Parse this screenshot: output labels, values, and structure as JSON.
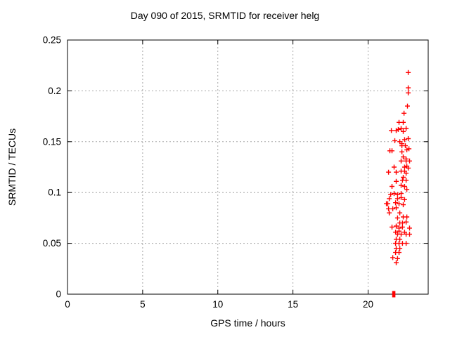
{
  "chart_data": {
    "type": "scatter",
    "title": "Day 090 of 2015, SRMTID for receiver helg",
    "xlabel": "GPS time / hours",
    "ylabel": "SRMTID / TECUs",
    "xlim": [
      0,
      24
    ],
    "ylim": [
      0,
      0.25
    ],
    "grid": true,
    "legend": "none",
    "xticks": {
      "values": [
        0,
        5,
        10,
        15,
        20
      ],
      "labels": [
        "0",
        "5",
        "10",
        "15",
        "20"
      ]
    },
    "yticks": {
      "values": [
        0,
        0.05,
        0.1,
        0.15,
        0.2,
        0.25
      ],
      "labels": [
        "0",
        "0.05",
        "0.1",
        "0.15",
        "0.2",
        "0.25"
      ]
    },
    "marker": "plus",
    "colors": {
      "marker": "#ff0000",
      "grid": "#a8a8a8",
      "frame": "#000000",
      "text": "#000000",
      "background": "#ffffff"
    },
    "series": [
      {
        "name": "SRMTID",
        "points": [
          [
            22.67,
            0.218
          ],
          [
            22.67,
            0.203
          ],
          [
            22.67,
            0.198
          ],
          [
            22.62,
            0.185
          ],
          [
            22.39,
            0.178
          ],
          [
            22.06,
            0.169
          ],
          [
            22.34,
            0.169
          ],
          [
            21.87,
            0.161
          ],
          [
            22.34,
            0.16
          ],
          [
            21.55,
            0.161
          ],
          [
            22.01,
            0.162
          ],
          [
            22.2,
            0.163
          ],
          [
            22.53,
            0.163
          ],
          [
            22.67,
            0.153
          ],
          [
            22.43,
            0.152
          ],
          [
            21.78,
            0.151
          ],
          [
            22.11,
            0.15
          ],
          [
            22.25,
            0.148
          ],
          [
            22.25,
            0.146
          ],
          [
            22.48,
            0.146
          ],
          [
            21.45,
            0.141
          ],
          [
            21.59,
            0.141
          ],
          [
            22.25,
            0.14
          ],
          [
            22.58,
            0.142
          ],
          [
            22.72,
            0.143
          ],
          [
            22.34,
            0.135
          ],
          [
            22.53,
            0.133
          ],
          [
            22.2,
            0.131
          ],
          [
            22.53,
            0.131
          ],
          [
            22.76,
            0.131
          ],
          [
            21.73,
            0.125
          ],
          [
            22.43,
            0.125
          ],
          [
            22.58,
            0.126
          ],
          [
            22.67,
            0.124
          ],
          [
            21.36,
            0.12
          ],
          [
            21.87,
            0.12
          ],
          [
            22.2,
            0.121
          ],
          [
            22.43,
            0.121
          ],
          [
            22.53,
            0.119
          ],
          [
            22.34,
            0.115
          ],
          [
            21.87,
            0.111
          ],
          [
            22.29,
            0.112
          ],
          [
            22.53,
            0.112
          ],
          [
            21.59,
            0.106
          ],
          [
            22.2,
            0.107
          ],
          [
            22.43,
            0.106
          ],
          [
            22.58,
            0.103
          ],
          [
            21.5,
            0.098
          ],
          [
            21.73,
            0.099
          ],
          [
            21.96,
            0.098
          ],
          [
            22.2,
            0.099
          ],
          [
            21.41,
            0.094
          ],
          [
            21.96,
            0.094
          ],
          [
            22.2,
            0.095
          ],
          [
            22.43,
            0.093
          ],
          [
            21.22,
            0.089
          ],
          [
            21.31,
            0.089
          ],
          [
            21.83,
            0.09
          ],
          [
            22.06,
            0.089
          ],
          [
            22.34,
            0.088
          ],
          [
            21.36,
            0.084
          ],
          [
            21.64,
            0.084
          ],
          [
            21.87,
            0.085
          ],
          [
            21.41,
            0.08
          ],
          [
            22.11,
            0.08
          ],
          [
            21.96,
            0.075
          ],
          [
            22.34,
            0.076
          ],
          [
            22.58,
            0.076
          ],
          [
            22.11,
            0.07
          ],
          [
            22.29,
            0.07
          ],
          [
            22.53,
            0.071
          ],
          [
            21.59,
            0.066
          ],
          [
            21.87,
            0.067
          ],
          [
            22.06,
            0.065
          ],
          [
            22.29,
            0.066
          ],
          [
            22.76,
            0.065
          ],
          [
            21.83,
            0.061
          ],
          [
            22.06,
            0.062
          ],
          [
            22.43,
            0.061
          ],
          [
            21.96,
            0.059
          ],
          [
            22.2,
            0.059
          ],
          [
            22.53,
            0.059
          ],
          [
            22.76,
            0.059
          ],
          [
            21.87,
            0.054
          ],
          [
            22.11,
            0.054
          ],
          [
            21.83,
            0.05
          ],
          [
            22.06,
            0.05
          ],
          [
            22.29,
            0.05
          ],
          [
            22.53,
            0.05
          ],
          [
            21.87,
            0.045
          ],
          [
            22.11,
            0.045
          ],
          [
            21.83,
            0.041
          ],
          [
            22.06,
            0.041
          ],
          [
            21.64,
            0.036
          ],
          [
            21.96,
            0.035
          ],
          [
            21.87,
            0.031
          ]
        ]
      }
    ],
    "zero_marker": {
      "x": 21.71,
      "y": 0
    }
  }
}
